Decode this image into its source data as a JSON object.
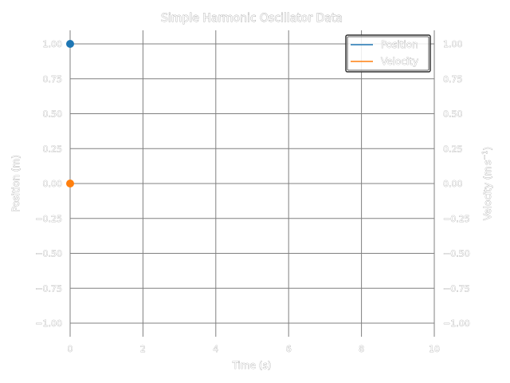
{
  "chart_data": {
    "type": "line",
    "title": "Simple Harmonic Oscillator Data",
    "xlabel": "Time (s)",
    "ylabel_left": "Position (m)",
    "ylabel_right_main": "Velocity (m",
    "ylabel_right_sup": "s",
    "ylabel_right_exp": "−1",
    "ylabel_right_close": ")",
    "xlim": [
      0,
      10
    ],
    "ylim": [
      -1.0,
      1.0
    ],
    "x_ticks": [
      "0",
      "2",
      "4",
      "6",
      "8",
      "10"
    ],
    "y_ticks": [
      "1.00",
      "0.75",
      "0.50",
      "0.25",
      "0.00",
      "−0.25",
      "−0.50",
      "−0.75",
      "−1.00"
    ],
    "grid": true,
    "legend_position": "top-right",
    "series": [
      {
        "name": "Position",
        "axis": "left",
        "color": "#1f77b4",
        "x": [
          0
        ],
        "y": [
          1.0
        ]
      },
      {
        "name": "Velocity",
        "axis": "right",
        "color": "#ff7f0e",
        "x": [
          0
        ],
        "y": [
          0.0
        ]
      }
    ]
  }
}
